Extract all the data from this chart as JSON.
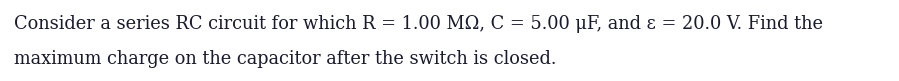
{
  "line1": "Consider a series RC circuit for which R = 1.00 MΩ, C = 5.00 μF, and ε = 20.0 V. Find the",
  "line2": "maximum charge on the capacitor after the switch is closed.",
  "text_color": "#1a1a2e",
  "background_color": "#ffffff",
  "fontsize": 12.8,
  "font_family": "serif",
  "fig_width": 8.99,
  "fig_height": 0.81,
  "dpi": 100
}
